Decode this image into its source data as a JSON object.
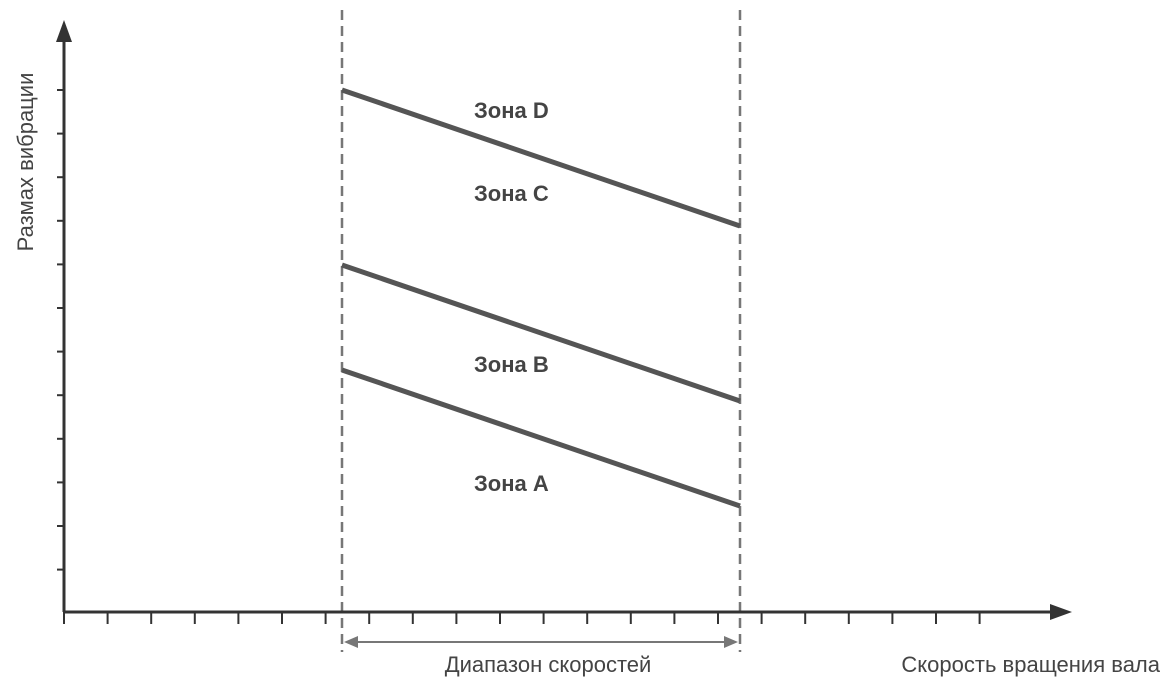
{
  "diagram": {
    "y_axis_label": "Размах вибрации",
    "x_axis_label": "Скорость вращения вала",
    "range_label": "Диапазон скоростей",
    "zones": {
      "d": "Зона D",
      "c": "Зона C",
      "b": "Зона B",
      "a": "Зона A"
    }
  },
  "colors": {
    "axis": "#333333",
    "boundary": "#555555",
    "guide": "#777777",
    "text": "#444444"
  }
}
